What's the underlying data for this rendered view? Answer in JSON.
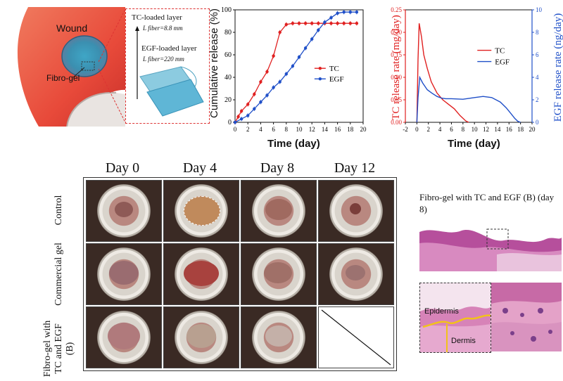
{
  "panel_a": {
    "wound_label": "Wound",
    "fibrogel_label": "Fibro-gel",
    "tc_layer_label": "TC-loaded layer",
    "tc_fiber_length": "L fiber=8.8 mm",
    "egf_layer_label": "EGF-loaded layer",
    "egf_fiber_length": "L fiber=220 mm"
  },
  "chart_data": [
    {
      "type": "line",
      "title": "",
      "xlabel": "Time (day)",
      "ylabel": "Cumulative release (%)",
      "xlim": [
        0,
        20
      ],
      "ylim": [
        0,
        100
      ],
      "xticks": [
        0,
        2,
        4,
        6,
        8,
        10,
        12,
        14,
        16,
        18,
        20
      ],
      "yticks": [
        0,
        20,
        40,
        60,
        80,
        100
      ],
      "legend_position": "center-right",
      "series": [
        {
          "name": "TC",
          "color": "#e02020",
          "marker": "circle",
          "x": [
            0,
            0.5,
            1,
            2,
            3,
            4,
            5,
            6,
            7,
            8,
            9,
            10,
            11,
            12,
            13,
            14,
            15,
            16,
            17,
            18,
            19
          ],
          "y": [
            0,
            5,
            10,
            16,
            25,
            36,
            45,
            59,
            80,
            87,
            88,
            88,
            88,
            88,
            88,
            88,
            88,
            88,
            88,
            88,
            88
          ]
        },
        {
          "name": "EGF",
          "color": "#1f4fc8",
          "marker": "circle",
          "x": [
            0,
            1,
            2,
            3,
            4,
            5,
            6,
            7,
            8,
            9,
            10,
            11,
            12,
            13,
            14,
            15,
            16,
            17,
            18,
            19
          ],
          "y": [
            0,
            3,
            6,
            12,
            18,
            24,
            31,
            36,
            43,
            50,
            58,
            66,
            74,
            82,
            89,
            93,
            97,
            98,
            98,
            98
          ]
        }
      ]
    },
    {
      "type": "line",
      "title": "",
      "xlabel": "Time (day)",
      "ylabel": "TC release rate (mg/day)",
      "y2label": "EGF release rate (ng/day)",
      "xlim": [
        -2,
        20
      ],
      "ylim": [
        0,
        0.25
      ],
      "y2lim": [
        0,
        10
      ],
      "xticks": [
        -2,
        0,
        2,
        4,
        6,
        8,
        10,
        12,
        14,
        16,
        18,
        20
      ],
      "yticks": [
        0.0,
        0.05,
        0.1,
        0.15,
        0.2,
        0.25
      ],
      "y2ticks": [
        0,
        2,
        4,
        6,
        8,
        10
      ],
      "legend_position": "center-right",
      "series": [
        {
          "name": "TC",
          "axis": "left",
          "color": "#e02020",
          "x": [
            0,
            0.2,
            0.4,
            0.8,
            1.2,
            1.8,
            2.5,
            3.5,
            4.5,
            5.5,
            6.5,
            7.5,
            8.5,
            9
          ],
          "y": [
            0,
            0.14,
            0.22,
            0.19,
            0.15,
            0.12,
            0.09,
            0.065,
            0.05,
            0.04,
            0.03,
            0.015,
            0.003,
            0
          ]
        },
        {
          "name": "EGF",
          "axis": "right",
          "color": "#1f4fc8",
          "x": [
            0,
            0.2,
            0.5,
            1,
            1.8,
            2.6,
            3.5,
            4.3,
            5,
            6,
            8,
            10,
            11.5,
            13,
            14.5,
            15.5,
            16.3,
            17,
            17.5,
            18
          ],
          "y": [
            0,
            2.2,
            4.0,
            3.5,
            2.9,
            2.6,
            2.3,
            2.15,
            2.1,
            2.1,
            2.05,
            2.2,
            2.3,
            2.2,
            1.8,
            1.3,
            0.8,
            0.35,
            0.1,
            0
          ]
        }
      ]
    }
  ],
  "grid": {
    "day_headers": [
      "Day 0",
      "Day 4",
      "Day 8",
      "Day 12"
    ],
    "row_headers": [
      "Control",
      "Commercial gel",
      "Fibro-gel with TC and EGF (B)"
    ]
  },
  "histology": {
    "title": "Fibro-gel with TC and EGF (B) (day 8)",
    "epidermis_label": "Epidermis",
    "dermis_label": "Dermis"
  }
}
